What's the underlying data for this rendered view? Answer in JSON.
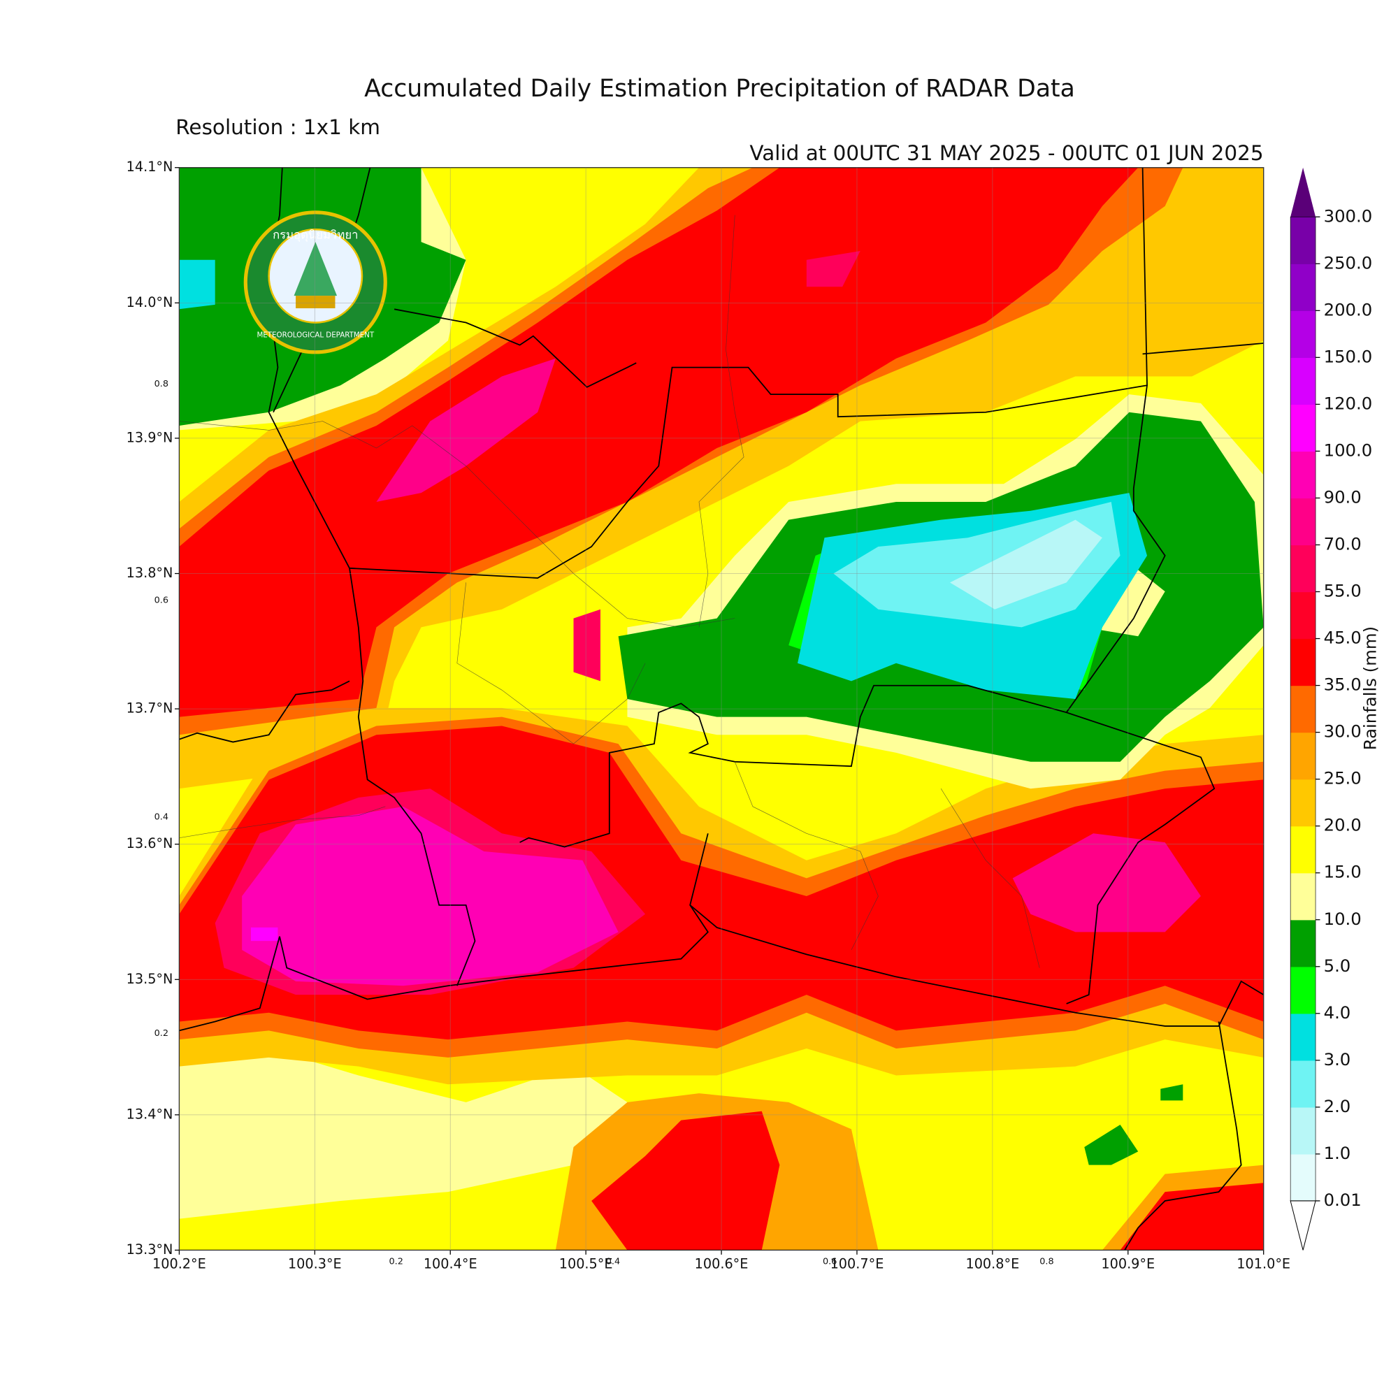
{
  "map": {
    "title": "Accumulated Daily Estimation Precipitation of RADAR Data",
    "resolution": "Resolution : 1x1 km",
    "valid": "Valid at 00UTC 31 MAY 2025 - 00UTC 01 JUN 2025",
    "lonlim": [
      100.2,
      101.0
    ],
    "latlim": [
      13.3,
      14.1
    ],
    "lon_ticks": [
      {
        "value": 100.2,
        "label": "100.2°E"
      },
      {
        "value": 100.3,
        "label": "100.3°E"
      },
      {
        "value": 100.4,
        "label": "100.4°E"
      },
      {
        "value": 100.5,
        "label": "100.5°E"
      },
      {
        "value": 100.6,
        "label": "100.6°E"
      },
      {
        "value": 100.7,
        "label": "100.7°E"
      },
      {
        "value": 100.8,
        "label": "100.8°E"
      },
      {
        "value": 100.9,
        "label": "100.9°E"
      },
      {
        "value": 101.0,
        "label": "101.0°E"
      }
    ],
    "lat_ticks": [
      {
        "value": 13.3,
        "label": "13.3°N"
      },
      {
        "value": 13.4,
        "label": "13.4°N"
      },
      {
        "value": 13.5,
        "label": "13.5°N"
      },
      {
        "value": 13.6,
        "label": "13.6°N"
      },
      {
        "value": 13.7,
        "label": "13.7°N"
      },
      {
        "value": 13.8,
        "label": "13.8°N"
      },
      {
        "value": 13.9,
        "label": "13.9°N"
      },
      {
        "value": 14.0,
        "label": "14.0°N"
      },
      {
        "value": 14.1,
        "label": "14.1°N"
      }
    ],
    "inner_ticks": [
      0.2,
      0.4,
      0.6,
      0.8
    ],
    "grid": true,
    "logo": {
      "thai": "กรมอุตุนิยมวิทยา",
      "english": "METEOROLOGICAL DEPARTMENT"
    },
    "colorbar": {
      "label": "Rainfalls (mm)",
      "ticks": [
        {
          "value": 0.01,
          "label": "0.01"
        },
        {
          "value": 1,
          "label": "1.0"
        },
        {
          "value": 2,
          "label": "2.0"
        },
        {
          "value": 3,
          "label": "3.0"
        },
        {
          "value": 4,
          "label": "4.0"
        },
        {
          "value": 5,
          "label": "5.0"
        },
        {
          "value": 10,
          "label": "10.0"
        },
        {
          "value": 15,
          "label": "15.0"
        },
        {
          "value": 20,
          "label": "20.0"
        },
        {
          "value": 25,
          "label": "25.0"
        },
        {
          "value": 30,
          "label": "30.0"
        },
        {
          "value": 35,
          "label": "35.0"
        },
        {
          "value": 45,
          "label": "45.0"
        },
        {
          "value": 55,
          "label": "55.0"
        },
        {
          "value": 70,
          "label": "70.0"
        },
        {
          "value": 90,
          "label": "90.0"
        },
        {
          "value": 100,
          "label": "100.0"
        },
        {
          "value": 120,
          "label": "120.0"
        },
        {
          "value": 150,
          "label": "150.0"
        },
        {
          "value": 200,
          "label": "200.0"
        },
        {
          "value": 250,
          "label": "250.0"
        },
        {
          "value": 300,
          "label": "300.0"
        }
      ],
      "colors": [
        "#e4fcfc",
        "#b8f7f7",
        "#6ff3f3",
        "#00e0e0",
        "#00ff00",
        "#00a000",
        "#ffff99",
        "#ffff00",
        "#ffc800",
        "#ffa500",
        "#ff6a00",
        "#ff0000",
        "#ff0028",
        "#ff005a",
        "#ff0088",
        "#ff00b4",
        "#ff00ff",
        "#d800ff",
        "#b400e6",
        "#9000c8",
        "#7800a8"
      ],
      "under_color": "#ffffff",
      "over_color": "#5a0078"
    }
  }
}
